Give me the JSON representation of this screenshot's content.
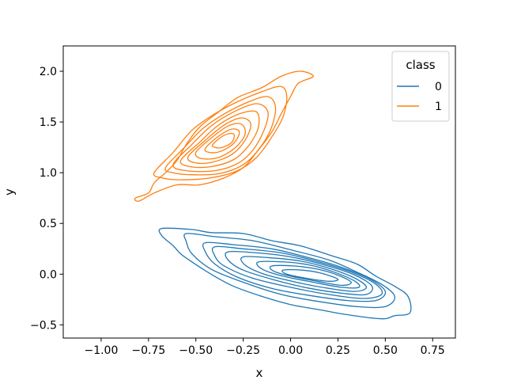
{
  "chart_data": {
    "type": "kde-contour",
    "title": "",
    "xlabel": "x",
    "ylabel": "y",
    "xlim": [
      -1.2,
      0.87
    ],
    "ylim": [
      -0.63,
      2.25
    ],
    "xticks": [
      -1.0,
      -0.75,
      -0.5,
      -0.25,
      0.0,
      0.25,
      0.5,
      0.75
    ],
    "xtick_labels": [
      "−1.00",
      "−0.75",
      "−0.50",
      "−0.25",
      "0.00",
      "0.25",
      "0.50",
      "0.75"
    ],
    "yticks": [
      -0.5,
      0.0,
      0.5,
      1.0,
      1.5,
      2.0
    ],
    "ytick_labels": [
      "−0.5",
      "0.0",
      "0.5",
      "1.0",
      "1.5",
      "2.0"
    ],
    "grid": false,
    "legend": {
      "title": "class",
      "position": "top-right",
      "entries": [
        {
          "label": "0",
          "color": "#1f77b4"
        },
        {
          "label": "1",
          "color": "#ff7f0e"
        }
      ]
    },
    "series": [
      {
        "name": "0",
        "color": "#1f77b4",
        "center": [
          0.05,
          -0.05
        ],
        "levels": 9,
        "contours": [
          [
            [
              -0.68,
              0.45
            ],
            [
              -0.52,
              0.44
            ],
            [
              -0.42,
              0.41
            ],
            [
              -0.25,
              0.4
            ],
            [
              -0.1,
              0.33
            ],
            [
              0.05,
              0.28
            ],
            [
              0.22,
              0.18
            ],
            [
              0.35,
              0.1
            ],
            [
              0.45,
              -0.02
            ],
            [
              0.55,
              -0.12
            ],
            [
              0.62,
              -0.22
            ],
            [
              0.63,
              -0.38
            ],
            [
              0.55,
              -0.41
            ],
            [
              0.48,
              -0.44
            ],
            [
              0.3,
              -0.4
            ],
            [
              0.15,
              -0.35
            ],
            [
              0.0,
              -0.3
            ],
            [
              -0.15,
              -0.22
            ],
            [
              -0.3,
              -0.12
            ],
            [
              -0.42,
              0.0
            ],
            [
              -0.52,
              0.12
            ],
            [
              -0.58,
              0.2
            ],
            [
              -0.62,
              0.28
            ],
            [
              -0.68,
              0.38
            ]
          ],
          [
            [
              -0.55,
              0.4
            ],
            [
              -0.4,
              0.37
            ],
            [
              -0.2,
              0.33
            ],
            [
              0.0,
              0.24
            ],
            [
              0.2,
              0.14
            ],
            [
              0.35,
              0.02
            ],
            [
              0.48,
              -0.1
            ],
            [
              0.55,
              -0.22
            ],
            [
              0.5,
              -0.32
            ],
            [
              0.35,
              -0.32
            ],
            [
              0.15,
              -0.27
            ],
            [
              -0.05,
              -0.2
            ],
            [
              -0.25,
              -0.08
            ],
            [
              -0.42,
              0.05
            ],
            [
              -0.52,
              0.2
            ],
            [
              -0.55,
              0.32
            ]
          ],
          [
            [
              -0.45,
              0.31
            ],
            [
              -0.3,
              0.29
            ],
            [
              -0.1,
              0.25
            ],
            [
              0.1,
              0.16
            ],
            [
              0.28,
              0.06
            ],
            [
              0.42,
              -0.05
            ],
            [
              0.5,
              -0.17
            ],
            [
              0.45,
              -0.26
            ],
            [
              0.3,
              -0.26
            ],
            [
              0.1,
              -0.21
            ],
            [
              -0.1,
              -0.14
            ],
            [
              -0.28,
              -0.03
            ],
            [
              -0.4,
              0.1
            ],
            [
              -0.45,
              0.22
            ]
          ],
          [
            [
              -0.4,
              0.27
            ],
            [
              -0.25,
              0.25
            ],
            [
              -0.05,
              0.21
            ],
            [
              0.15,
              0.12
            ],
            [
              0.32,
              0.02
            ],
            [
              0.45,
              -0.1
            ],
            [
              0.48,
              -0.2
            ],
            [
              0.38,
              -0.24
            ],
            [
              0.2,
              -0.2
            ],
            [
              0.0,
              -0.13
            ],
            [
              -0.2,
              -0.04
            ],
            [
              -0.35,
              0.08
            ],
            [
              -0.4,
              0.18
            ]
          ],
          [
            [
              -0.33,
              0.22
            ],
            [
              -0.18,
              0.21
            ],
            [
              0.0,
              0.17
            ],
            [
              0.18,
              0.09
            ],
            [
              0.34,
              -0.01
            ],
            [
              0.43,
              -0.12
            ],
            [
              0.4,
              -0.2
            ],
            [
              0.28,
              -0.19
            ],
            [
              0.1,
              -0.14
            ],
            [
              -0.08,
              -0.06
            ],
            [
              -0.25,
              0.04
            ],
            [
              -0.33,
              0.14
            ]
          ],
          [
            [
              -0.25,
              0.17
            ],
            [
              -0.1,
              0.16
            ],
            [
              0.05,
              0.13
            ],
            [
              0.2,
              0.06
            ],
            [
              0.34,
              -0.04
            ],
            [
              0.4,
              -0.13
            ],
            [
              0.34,
              -0.17
            ],
            [
              0.2,
              -0.14
            ],
            [
              0.03,
              -0.08
            ],
            [
              -0.14,
              0.0
            ],
            [
              -0.24,
              0.09
            ]
          ],
          [
            [
              -0.17,
              0.12
            ],
            [
              -0.03,
              0.12
            ],
            [
              0.1,
              0.09
            ],
            [
              0.23,
              0.02
            ],
            [
              0.34,
              -0.07
            ],
            [
              0.36,
              -0.13
            ],
            [
              0.27,
              -0.13
            ],
            [
              0.12,
              -0.08
            ],
            [
              -0.04,
              -0.02
            ],
            [
              -0.15,
              0.05
            ]
          ],
          [
            [
              -0.1,
              0.08
            ],
            [
              0.02,
              0.08
            ],
            [
              0.14,
              0.05
            ],
            [
              0.25,
              -0.01
            ],
            [
              0.32,
              -0.08
            ],
            [
              0.27,
              -0.11
            ],
            [
              0.14,
              -0.07
            ],
            [
              0.0,
              -0.02
            ],
            [
              -0.09,
              0.03
            ]
          ],
          [
            [
              -0.04,
              0.04
            ],
            [
              0.06,
              0.04
            ],
            [
              0.16,
              0.01
            ],
            [
              0.25,
              -0.05
            ],
            [
              0.2,
              -0.07
            ],
            [
              0.08,
              -0.04
            ],
            [
              -0.02,
              0.0
            ]
          ]
        ]
      },
      {
        "name": "1",
        "color": "#ff7f0e",
        "center": [
          -0.38,
          1.35
        ],
        "levels": 9,
        "contours": [
          [
            [
              -0.82,
              0.75
            ],
            [
              -0.75,
              0.8
            ],
            [
              -0.72,
              0.9
            ],
            [
              -0.66,
              1.0
            ],
            [
              -0.6,
              1.12
            ],
            [
              -0.55,
              1.28
            ],
            [
              -0.48,
              1.45
            ],
            [
              -0.38,
              1.6
            ],
            [
              -0.28,
              1.74
            ],
            [
              -0.15,
              1.84
            ],
            [
              -0.05,
              1.95
            ],
            [
              0.05,
              2.0
            ],
            [
              0.12,
              1.95
            ],
            [
              0.04,
              1.88
            ],
            [
              0.0,
              1.75
            ],
            [
              -0.05,
              1.58
            ],
            [
              -0.1,
              1.4
            ],
            [
              -0.18,
              1.2
            ],
            [
              -0.25,
              1.05
            ],
            [
              -0.35,
              0.95
            ],
            [
              -0.48,
              0.88
            ],
            [
              -0.6,
              0.88
            ],
            [
              -0.72,
              0.8
            ],
            [
              -0.8,
              0.72
            ]
          ],
          [
            [
              -0.72,
              1.0
            ],
            [
              -0.62,
              1.2
            ],
            [
              -0.52,
              1.42
            ],
            [
              -0.4,
              1.58
            ],
            [
              -0.28,
              1.7
            ],
            [
              -0.15,
              1.8
            ],
            [
              -0.05,
              1.85
            ],
            [
              -0.02,
              1.75
            ],
            [
              -0.04,
              1.55
            ],
            [
              -0.1,
              1.35
            ],
            [
              -0.18,
              1.15
            ],
            [
              -0.28,
              1.02
            ],
            [
              -0.42,
              0.95
            ],
            [
              -0.58,
              0.93
            ],
            [
              -0.68,
              0.95
            ]
          ],
          [
            [
              -0.66,
              1.05
            ],
            [
              -0.56,
              1.25
            ],
            [
              -0.46,
              1.44
            ],
            [
              -0.35,
              1.58
            ],
            [
              -0.22,
              1.7
            ],
            [
              -0.12,
              1.75
            ],
            [
              -0.08,
              1.65
            ],
            [
              -0.1,
              1.45
            ],
            [
              -0.16,
              1.25
            ],
            [
              -0.25,
              1.08
            ],
            [
              -0.38,
              0.99
            ],
            [
              -0.52,
              0.98
            ],
            [
              -0.62,
              1.0
            ]
          ],
          [
            [
              -0.62,
              1.08
            ],
            [
              -0.52,
              1.28
            ],
            [
              -0.42,
              1.46
            ],
            [
              -0.3,
              1.6
            ],
            [
              -0.18,
              1.68
            ],
            [
              -0.12,
              1.6
            ],
            [
              -0.14,
              1.42
            ],
            [
              -0.2,
              1.22
            ],
            [
              -0.28,
              1.09
            ],
            [
              -0.4,
              1.02
            ],
            [
              -0.55,
              1.02
            ]
          ],
          [
            [
              -0.58,
              1.12
            ],
            [
              -0.48,
              1.3
            ],
            [
              -0.38,
              1.47
            ],
            [
              -0.27,
              1.58
            ],
            [
              -0.18,
              1.6
            ],
            [
              -0.17,
              1.45
            ],
            [
              -0.22,
              1.27
            ],
            [
              -0.3,
              1.13
            ],
            [
              -0.42,
              1.06
            ],
            [
              -0.53,
              1.06
            ]
          ],
          [
            [
              -0.54,
              1.16
            ],
            [
              -0.45,
              1.32
            ],
            [
              -0.35,
              1.47
            ],
            [
              -0.26,
              1.54
            ],
            [
              -0.21,
              1.48
            ],
            [
              -0.24,
              1.32
            ],
            [
              -0.31,
              1.18
            ],
            [
              -0.42,
              1.1
            ],
            [
              -0.51,
              1.1
            ]
          ],
          [
            [
              -0.5,
              1.2
            ],
            [
              -0.42,
              1.34
            ],
            [
              -0.33,
              1.46
            ],
            [
              -0.26,
              1.48
            ],
            [
              -0.24,
              1.38
            ],
            [
              -0.29,
              1.25
            ],
            [
              -0.38,
              1.15
            ],
            [
              -0.47,
              1.14
            ]
          ],
          [
            [
              -0.45,
              1.24
            ],
            [
              -0.38,
              1.36
            ],
            [
              -0.31,
              1.43
            ],
            [
              -0.27,
              1.4
            ],
            [
              -0.3,
              1.29
            ],
            [
              -0.37,
              1.21
            ],
            [
              -0.43,
              1.2
            ]
          ],
          [
            [
              -0.41,
              1.28
            ],
            [
              -0.35,
              1.37
            ],
            [
              -0.3,
              1.38
            ],
            [
              -0.31,
              1.3
            ],
            [
              -0.36,
              1.25
            ],
            [
              -0.4,
              1.25
            ]
          ]
        ]
      }
    ]
  }
}
